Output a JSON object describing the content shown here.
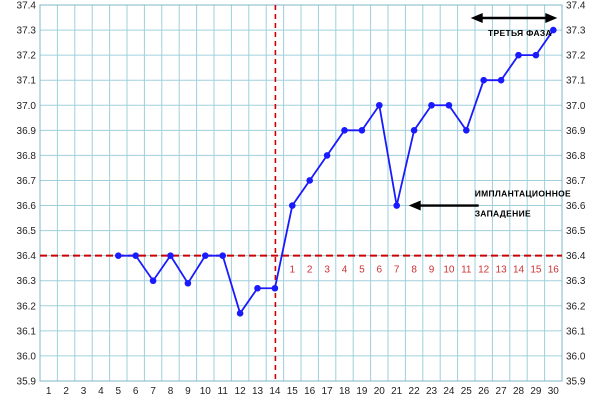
{
  "chart_data": {
    "type": "line",
    "title": "",
    "xlabel": "",
    "ylabel": "",
    "xlim": [
      1,
      30
    ],
    "ylim": [
      35.9,
      37.4
    ],
    "grid": true,
    "x_ticks": [
      "1",
      "2",
      "3",
      "4",
      "5",
      "6",
      "7",
      "8",
      "9",
      "10",
      "11",
      "12",
      "13",
      "14",
      "15",
      "16",
      "17",
      "18",
      "19",
      "20",
      "21",
      "22",
      "23",
      "24",
      "25",
      "26",
      "27",
      "28",
      "29",
      "30"
    ],
    "y_ticks": [
      "35.9",
      "36.0",
      "36.1",
      "36.2",
      "36.3",
      "36.4",
      "36.5",
      "36.6",
      "36.7",
      "36.8",
      "36.9",
      "37.0",
      "37.1",
      "37.2",
      "37.3",
      "37.4"
    ],
    "series": [
      {
        "x": [
          5,
          6,
          7,
          8,
          9,
          10,
          11,
          12,
          13,
          14,
          15,
          16,
          17,
          18,
          19,
          20,
          21,
          22,
          23,
          24,
          25,
          26,
          27,
          28,
          29,
          30
        ],
        "y": [
          36.4,
          36.4,
          36.3,
          36.4,
          36.29,
          36.4,
          36.4,
          36.17,
          36.27,
          36.27,
          36.6,
          36.7,
          36.8,
          36.9,
          36.9,
          37.0,
          36.6,
          36.9,
          37.0,
          37.0,
          36.9,
          37.1,
          37.1,
          37.2,
          37.2,
          37.3
        ],
        "color": "#1a1aff"
      }
    ],
    "baseline": {
      "y": 36.4,
      "color": "#cc0000"
    },
    "ovulation_day": {
      "x": 14,
      "color": "#cc0000"
    },
    "phase_day_labels": {
      "start_x": 15,
      "labels": [
        "1",
        "2",
        "3",
        "4",
        "5",
        "6",
        "7",
        "8",
        "9",
        "10",
        "11",
        "12",
        "13",
        "14",
        "15",
        "16"
      ],
      "color": "#cc3333"
    },
    "annotations": [
      {
        "text_lines": [
          "ИМПЛАНТАЦИОННОЕ",
          "ЗАПАДЕНИЕ"
        ],
        "target_x": 21,
        "target_y": 36.6,
        "arrow": "left"
      },
      {
        "text_lines": [
          "ТРЕТЬЯ ФАЗА"
        ],
        "arrow_from_x": 26,
        "arrow_to_x": 30,
        "arrow_y": 37.4,
        "arrow": "both"
      }
    ]
  }
}
